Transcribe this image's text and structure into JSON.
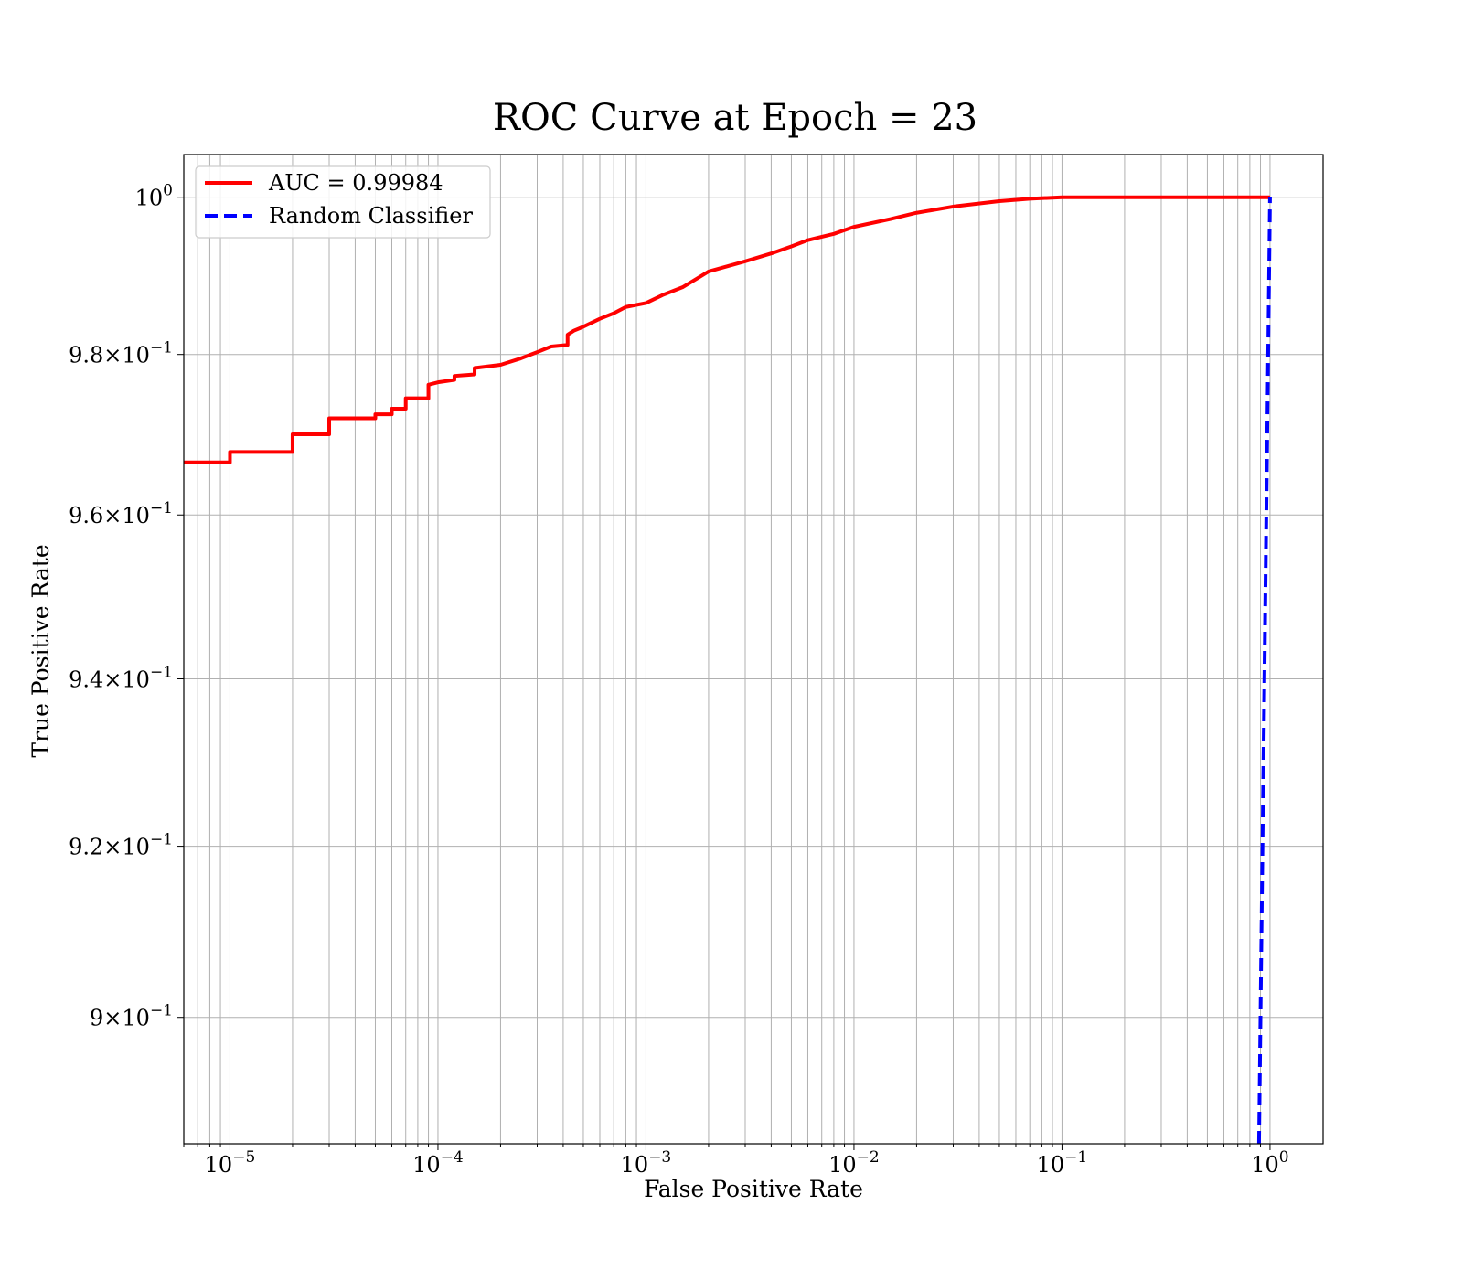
{
  "chart_data": {
    "type": "line",
    "title": "ROC Curve at Epoch = 23",
    "xlabel": "False Positive Rate",
    "ylabel": "True Positive Rate",
    "x_scale": "log",
    "y_scale": "log",
    "xlim": [
      6e-06,
      1.8
    ],
    "ylim": [
      0.8855,
      1.0055
    ],
    "grid": "both major and minor",
    "legend_position": "top-left",
    "x_ticks": [
      {
        "base": "10",
        "exp": "−5",
        "value": 1e-05
      },
      {
        "base": "10",
        "exp": "−4",
        "value": 0.0001
      },
      {
        "base": "10",
        "exp": "−3",
        "value": 0.001
      },
      {
        "base": "10",
        "exp": "−2",
        "value": 0.01
      },
      {
        "base": "10",
        "exp": "−1",
        "value": 0.1
      },
      {
        "base": "10",
        "exp": "0",
        "value": 1
      }
    ],
    "y_ticks": [
      {
        "mant": "",
        "base": "10",
        "exp": "0",
        "value": 1.0
      },
      {
        "mant": "9.8×",
        "base": "10",
        "exp": "−1",
        "value": 0.98
      },
      {
        "mant": "9.6×",
        "base": "10",
        "exp": "−1",
        "value": 0.96
      },
      {
        "mant": "9.4×",
        "base": "10",
        "exp": "−1",
        "value": 0.94
      },
      {
        "mant": "9.2×",
        "base": "10",
        "exp": "−1",
        "value": 0.92
      },
      {
        "mant": "9×",
        "base": "10",
        "exp": "−1",
        "value": 0.9
      }
    ],
    "series": [
      {
        "name": "AUC = 0.99984",
        "color": "#ff0000",
        "style": "solid",
        "x": [
          6e-06,
          1e-05,
          1e-05,
          2e-05,
          2e-05,
          3e-05,
          3e-05,
          5e-05,
          5e-05,
          6e-05,
          6e-05,
          7e-05,
          7e-05,
          9e-05,
          9e-05,
          0.0001,
          0.00012,
          0.00012,
          0.00015,
          0.00015,
          0.0002,
          0.00025,
          0.0003,
          0.00035,
          0.00042,
          0.00042,
          0.00045,
          0.0005,
          0.0006,
          0.0007,
          0.0008,
          0.001,
          0.0012,
          0.0015,
          0.002,
          0.003,
          0.004,
          0.005,
          0.006,
          0.008,
          0.01,
          0.015,
          0.02,
          0.03,
          0.05,
          0.07,
          0.1,
          0.2,
          0.5,
          1.0
        ],
        "y": [
          0.9665,
          0.9665,
          0.9678,
          0.9678,
          0.97,
          0.97,
          0.972,
          0.972,
          0.9725,
          0.9725,
          0.9732,
          0.9732,
          0.9745,
          0.9745,
          0.9762,
          0.9765,
          0.9768,
          0.9773,
          0.9775,
          0.9783,
          0.9787,
          0.9795,
          0.9803,
          0.981,
          0.9812,
          0.9825,
          0.983,
          0.9835,
          0.9845,
          0.9852,
          0.986,
          0.9865,
          0.9875,
          0.9885,
          0.9905,
          0.9918,
          0.9928,
          0.9937,
          0.9945,
          0.9953,
          0.9962,
          0.9972,
          0.998,
          0.9988,
          0.9995,
          0.9998,
          1.0,
          1.0,
          1.0,
          1.0
        ]
      },
      {
        "name": "Random Classifier",
        "color": "#0000ff",
        "style": "dashed",
        "x": [
          0.8855,
          0.9,
          0.95,
          1.0
        ],
        "y": [
          0.8855,
          0.9,
          0.95,
          1.0
        ]
      }
    ]
  }
}
